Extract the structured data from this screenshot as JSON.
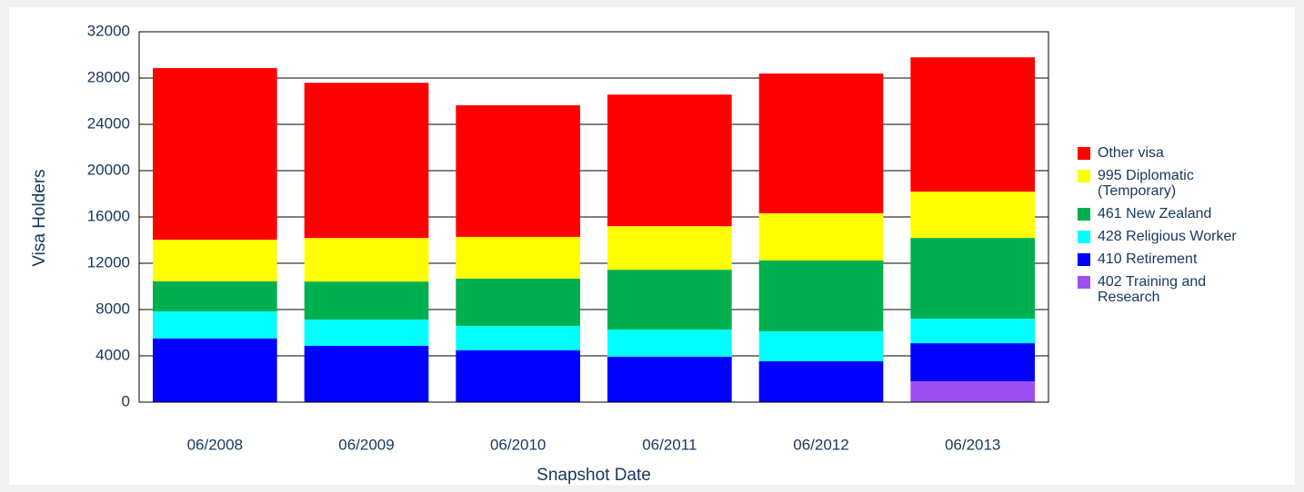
{
  "chart_data": {
    "type": "stacked_bar",
    "x_label": "Snapshot Date",
    "y_label": "Visa Holders",
    "categories": [
      "06/2008",
      "06/2009",
      "06/2010",
      "06/2011",
      "06/2012",
      "06/2013"
    ],
    "series": [
      {
        "name": "402 Training and Research",
        "color": "#9e4ff0",
        "values": [
          0,
          0,
          0,
          0,
          0,
          1800
        ]
      },
      {
        "name": "410 Retirement",
        "color": "#0000ff",
        "values": [
          5490,
          4860,
          4470,
          3920,
          3530,
          3290
        ]
      },
      {
        "name": "428 Religious Worker",
        "color": "#00ffff",
        "values": [
          2350,
          2270,
          2120,
          2350,
          2590,
          2120
        ]
      },
      {
        "name": "461 New Zealand",
        "color": "#00b050",
        "values": [
          2590,
          3290,
          4080,
          5170,
          6120,
          6980
        ]
      },
      {
        "name": "995 Diplomatic (Temporary)",
        "color": "#ffff00",
        "values": [
          3610,
          3760,
          3610,
          3760,
          4080,
          4000
        ]
      },
      {
        "name": "Other visa",
        "color": "#ff0000",
        "values": [
          14820,
          13410,
          11370,
          11370,
          12070,
          11600
        ]
      }
    ],
    "ylim": [
      0,
      32000
    ],
    "yticks": [
      0,
      4000,
      8000,
      12000,
      16000,
      20000,
      24000,
      28000,
      32000
    ],
    "grid": true
  }
}
